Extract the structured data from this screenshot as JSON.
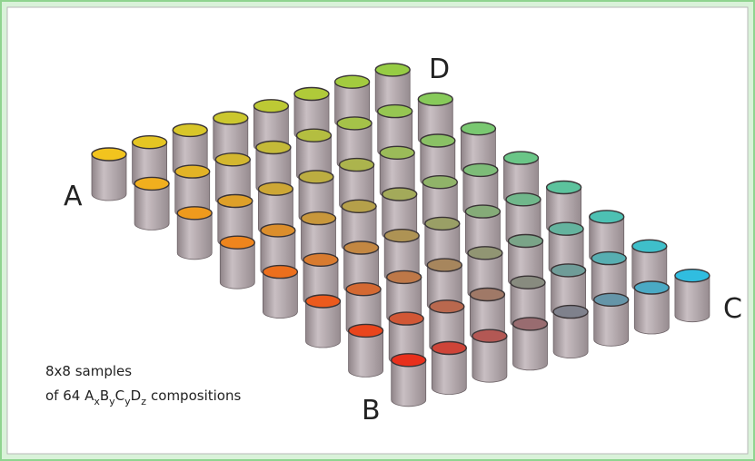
{
  "labels": {
    "a": "A",
    "b": "B",
    "c": "C",
    "d": "D"
  },
  "caption": {
    "line1": "8x8 samples",
    "line2": [
      "of 64 A",
      "x",
      "B",
      "y",
      "C",
      "y",
      "D",
      "z",
      "compositions"
    ]
  },
  "corner_colors": {
    "a": "#f2c41e",
    "b": "#e8301c",
    "c": "#30bde0",
    "d": "#96cc44"
  },
  "body_color": "#b3a8ac"
}
